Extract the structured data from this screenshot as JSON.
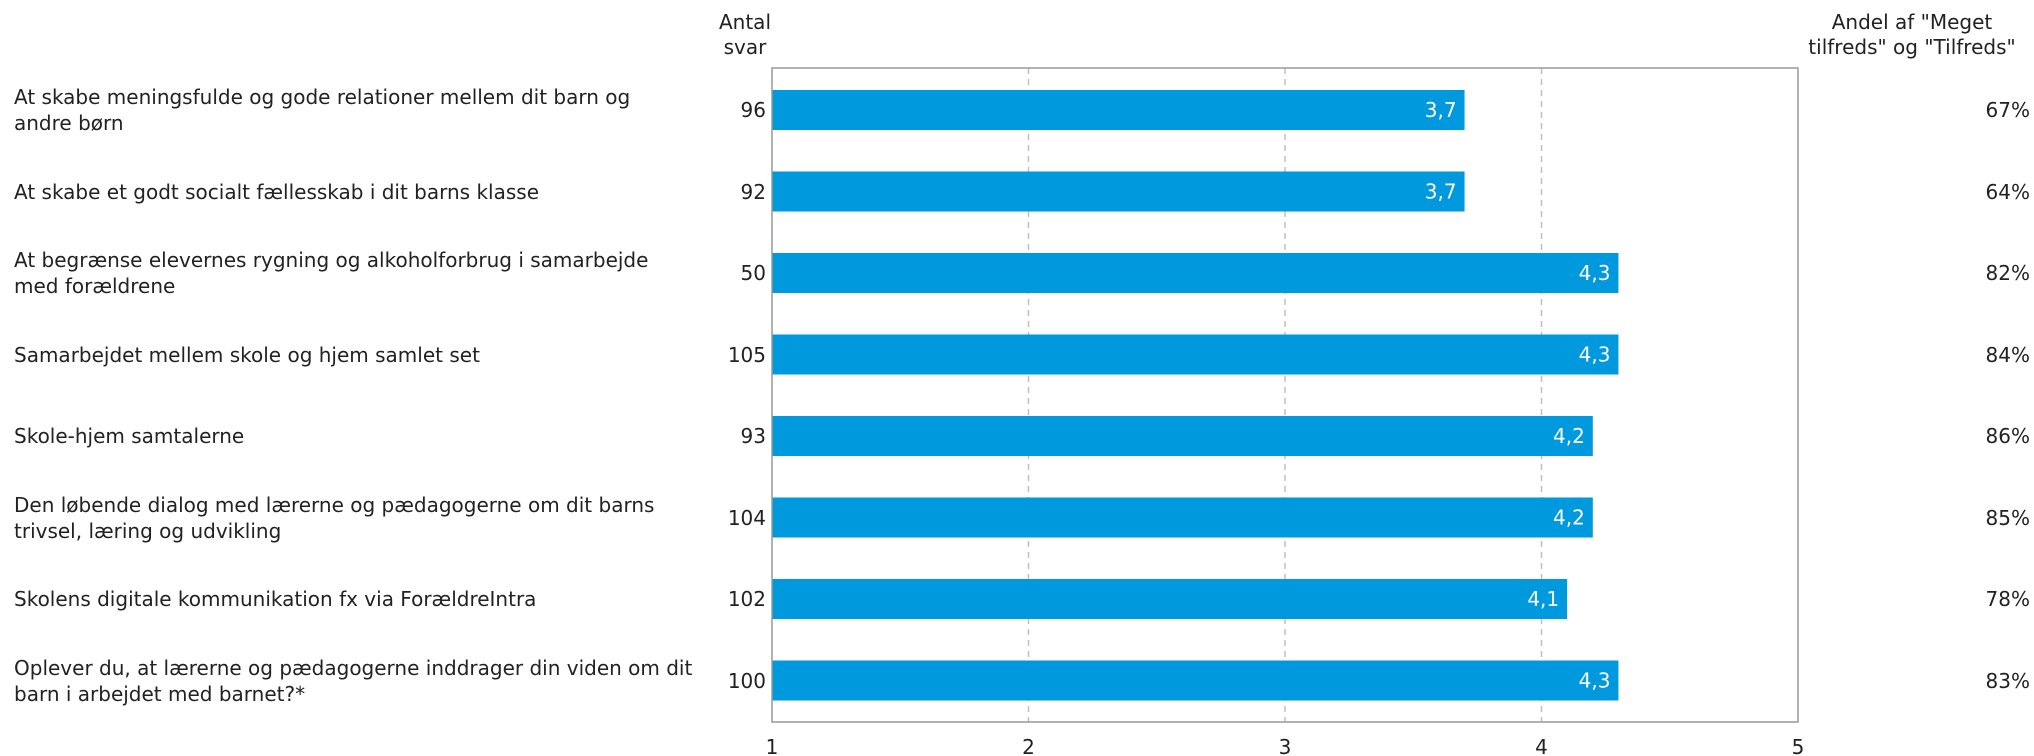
{
  "header": {
    "count_line1": "Antal",
    "count_line2": "svar",
    "share_line1": "Andel af \"Meget",
    "share_line2": "tilfreds\" og \"Tilfreds\""
  },
  "colors": {
    "bar": "#0099dd",
    "bar_label": "#ffffff",
    "axis": "#999999",
    "grid": "#c0c0c0"
  },
  "chart_data": {
    "type": "bar",
    "orientation": "horizontal",
    "categories": [
      "At skabe meningsfulde og gode relationer mellem dit barn og andre børn",
      "At skabe et godt socialt fællesskab i dit barns klasse",
      "At begrænse elevernes rygning og alkoholforbrug i samarbejde med forældrene",
      "Samarbejdet mellem skole og hjem samlet set",
      "Skole-hjem samtalerne",
      "Den løbende dialog med lærerne og pædagogerne om dit barns trivsel, læring og udvikling",
      "Skolens digitale kommunikation fx via ForældreIntra",
      "Oplever du, at lærerne og pædagogerne inddrager din viden om dit barn i arbejdet med barnet?*"
    ],
    "values": [
      3.7,
      3.7,
      4.3,
      4.3,
      4.2,
      4.2,
      4.1,
      4.3
    ],
    "value_labels": [
      "3,7",
      "3,7",
      "4,3",
      "4,3",
      "4,2",
      "4,2",
      "4,1",
      "4,3"
    ],
    "counts": [
      "96",
      "92",
      "50",
      "105",
      "93",
      "104",
      "102",
      "100"
    ],
    "shares": [
      "67%",
      "64%",
      "82%",
      "84%",
      "86%",
      "85%",
      "78%",
      "83%"
    ],
    "xlim": [
      1,
      5
    ],
    "xticks": [
      "1",
      "2",
      "3",
      "4",
      "5"
    ],
    "grid": true,
    "legend": "none"
  }
}
